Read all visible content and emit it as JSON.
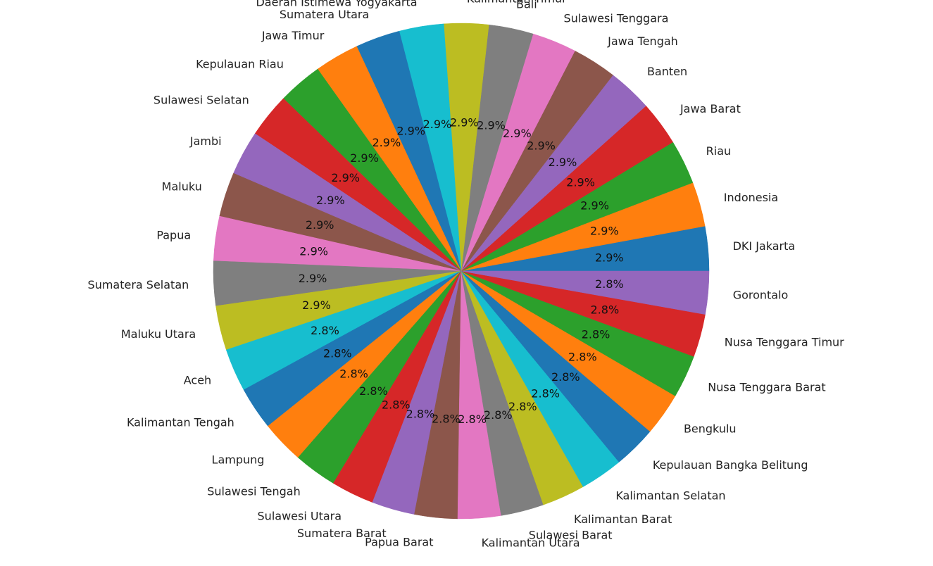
{
  "chart_data": {
    "type": "pie",
    "title": "",
    "start_angle_deg": 0,
    "direction": "counterclockwise",
    "percent_format": "1 decimal",
    "slices": [
      {
        "label": "DKI Jakarta",
        "percent": 2.9,
        "percent_label": "2.9%",
        "color": "#1f77b4"
      },
      {
        "label": "Indonesia",
        "percent": 2.9,
        "percent_label": "2.9%",
        "color": "#ff7f0e"
      },
      {
        "label": "Riau",
        "percent": 2.9,
        "percent_label": "2.9%",
        "color": "#2ca02c"
      },
      {
        "label": "Jawa Barat",
        "percent": 2.9,
        "percent_label": "2.9%",
        "color": "#d62728"
      },
      {
        "label": "Banten",
        "percent": 2.9,
        "percent_label": "2.9%",
        "color": "#9467bd"
      },
      {
        "label": "Jawa Tengah",
        "percent": 2.9,
        "percent_label": "2.9%",
        "color": "#8c564b"
      },
      {
        "label": "Sulawesi Tenggara",
        "percent": 2.9,
        "percent_label": "2.9%",
        "color": "#e377c2"
      },
      {
        "label": "Bali",
        "percent": 2.9,
        "percent_label": "2.9%",
        "color": "#7f7f7f"
      },
      {
        "label": "Kalimantan Timur",
        "percent": 2.9,
        "percent_label": "2.9%",
        "color": "#bcbd22"
      },
      {
        "label": "Daerah Istimewa Yogyakarta",
        "percent": 2.9,
        "percent_label": "2.9%",
        "color": "#17becf"
      },
      {
        "label": "Sumatera Utara",
        "percent": 2.9,
        "percent_label": "2.9%",
        "color": "#1f77b4"
      },
      {
        "label": "Jawa Timur",
        "percent": 2.9,
        "percent_label": "2.9%",
        "color": "#ff7f0e"
      },
      {
        "label": "Kepulauan Riau",
        "percent": 2.9,
        "percent_label": "2.9%",
        "color": "#2ca02c"
      },
      {
        "label": "Sulawesi Selatan",
        "percent": 2.9,
        "percent_label": "2.9%",
        "color": "#d62728"
      },
      {
        "label": "Jambi",
        "percent": 2.9,
        "percent_label": "2.9%",
        "color": "#9467bd"
      },
      {
        "label": "Maluku",
        "percent": 2.9,
        "percent_label": "2.9%",
        "color": "#8c564b"
      },
      {
        "label": "Papua",
        "percent": 2.9,
        "percent_label": "2.9%",
        "color": "#e377c2"
      },
      {
        "label": "Sumatera Selatan",
        "percent": 2.9,
        "percent_label": "2.9%",
        "color": "#7f7f7f"
      },
      {
        "label": "Maluku Utara",
        "percent": 2.9,
        "percent_label": "2.9%",
        "color": "#bcbd22"
      },
      {
        "label": "Aceh",
        "percent": 2.8,
        "percent_label": "2.8%",
        "color": "#17becf"
      },
      {
        "label": "Kalimantan Tengah",
        "percent": 2.8,
        "percent_label": "2.8%",
        "color": "#1f77b4"
      },
      {
        "label": "Lampung",
        "percent": 2.8,
        "percent_label": "2.8%",
        "color": "#ff7f0e"
      },
      {
        "label": "Sulawesi Tengah",
        "percent": 2.8,
        "percent_label": "2.8%",
        "color": "#2ca02c"
      },
      {
        "label": "Sulawesi Utara",
        "percent": 2.8,
        "percent_label": "2.8%",
        "color": "#d62728"
      },
      {
        "label": "Sumatera Barat",
        "percent": 2.8,
        "percent_label": "2.8%",
        "color": "#9467bd"
      },
      {
        "label": "Papua Barat",
        "percent": 2.8,
        "percent_label": "2.8%",
        "color": "#8c564b"
      },
      {
        "label": "Kalimantan Utara",
        "percent": 2.8,
        "percent_label": "2.8%",
        "color": "#e377c2"
      },
      {
        "label": "Sulawesi Barat",
        "percent": 2.8,
        "percent_label": "2.8%",
        "color": "#7f7f7f"
      },
      {
        "label": "Kalimantan Barat",
        "percent": 2.8,
        "percent_label": "2.8%",
        "color": "#bcbd22"
      },
      {
        "label": "Kalimantan Selatan",
        "percent": 2.8,
        "percent_label": "2.8%",
        "color": "#17becf"
      },
      {
        "label": "Kepulauan Bangka Belitung",
        "percent": 2.8,
        "percent_label": "2.8%",
        "color": "#1f77b4"
      },
      {
        "label": "Bengkulu",
        "percent": 2.8,
        "percent_label": "2.8%",
        "color": "#ff7f0e"
      },
      {
        "label": "Nusa Tenggara Barat",
        "percent": 2.8,
        "percent_label": "2.8%",
        "color": "#2ca02c"
      },
      {
        "label": "Nusa Tenggara Timur",
        "percent": 2.8,
        "percent_label": "2.8%",
        "color": "#d62728"
      },
      {
        "label": "Gorontalo",
        "percent": 2.8,
        "percent_label": "2.8%",
        "color": "#9467bd"
      }
    ]
  }
}
